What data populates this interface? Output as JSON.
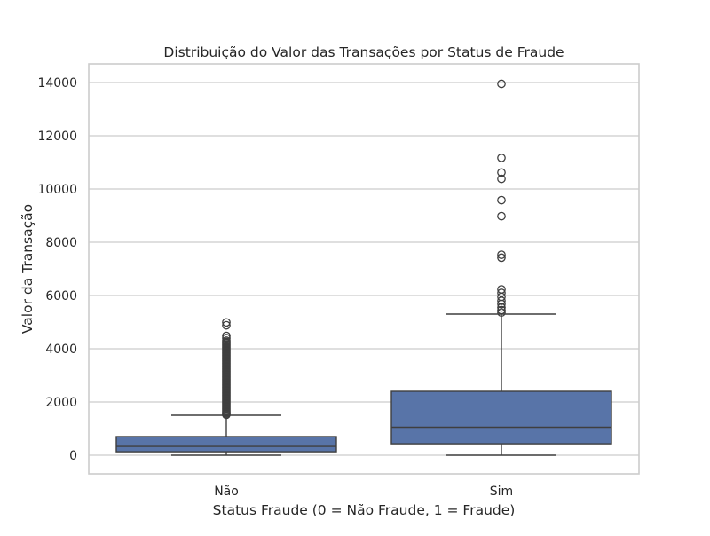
{
  "chart_data": {
    "type": "box",
    "title": "Distribuição do Valor das Transações por Status de Fraude",
    "xlabel": "Status Fraude (0 = Não Fraude, 1 = Fraude)",
    "ylabel": "Valor da Transação",
    "categories": [
      "Não",
      "Sim"
    ],
    "ylim": [
      -700,
      14700
    ],
    "yticks": [
      0,
      2000,
      4000,
      6000,
      8000,
      10000,
      12000,
      14000
    ],
    "grid": true,
    "box_color": "#5874a8",
    "edge_color": "#3f3f3f",
    "boxes": [
      {
        "category": "Não",
        "whisker_low": 0,
        "q1": 130,
        "median": 330,
        "q3": 700,
        "whisker_high": 1500,
        "outliers": [
          1520,
          1560,
          1600,
          1650,
          1700,
          1750,
          1800,
          1850,
          1900,
          1950,
          2000,
          2050,
          2100,
          2150,
          2200,
          2250,
          2300,
          2350,
          2400,
          2450,
          2500,
          2550,
          2600,
          2650,
          2700,
          2750,
          2800,
          2850,
          2900,
          2950,
          3000,
          3050,
          3100,
          3150,
          3200,
          3250,
          3300,
          3350,
          3400,
          3450,
          3500,
          3550,
          3600,
          3650,
          3700,
          3750,
          3800,
          3850,
          3900,
          3950,
          4000,
          4050,
          4100,
          4150,
          4200,
          4250,
          4300,
          4400,
          4480,
          4880,
          4990
        ]
      },
      {
        "category": "Sim",
        "whisker_low": 0,
        "q1": 430,
        "median": 1050,
        "q3": 2400,
        "whisker_high": 5300,
        "outliers": [
          5360,
          5450,
          5550,
          5680,
          5800,
          5950,
          6100,
          6230,
          7420,
          7530,
          8980,
          9580,
          10380,
          10620,
          11170,
          13950
        ]
      }
    ]
  }
}
